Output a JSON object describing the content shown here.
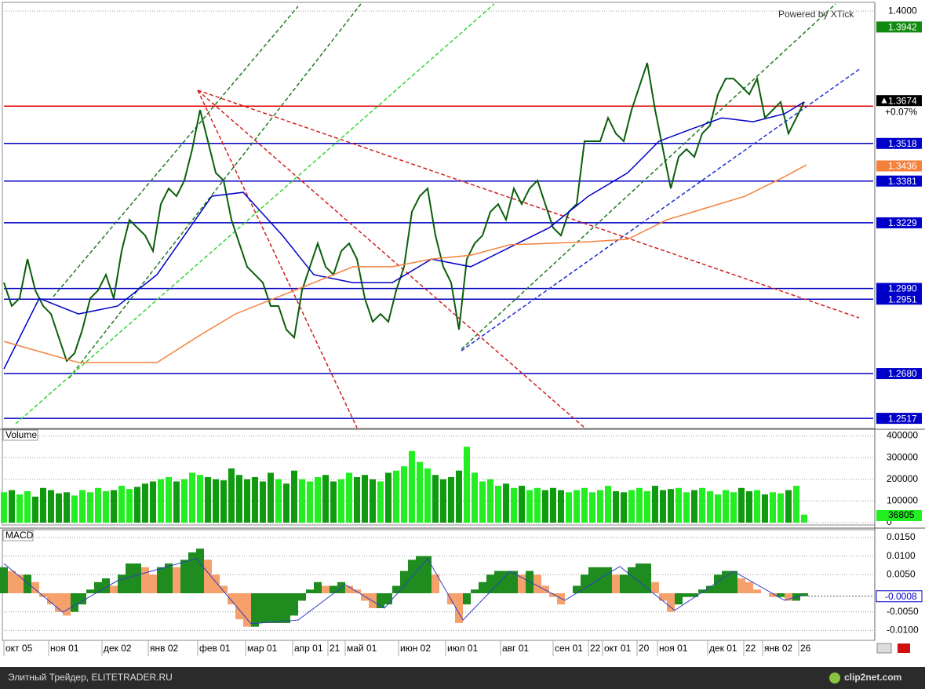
{
  "chart_data": [
    {
      "type": "line",
      "annotation": "Powered by XTick",
      "xlim": [
        0,
        111
      ],
      "ylim": [
        1.2483,
        1.4026
      ],
      "yticks": [
        {
          "value": 1.4,
          "label": "1.4000"
        }
      ],
      "x": [
        0,
        1,
        2,
        3,
        4,
        5,
        6,
        7,
        8,
        9,
        10,
        11,
        12,
        13,
        14,
        15,
        16,
        17,
        18,
        19,
        20,
        21,
        22,
        23,
        24,
        25,
        26,
        27,
        28,
        29,
        30,
        31,
        32,
        33,
        34,
        35,
        36,
        37,
        38,
        39,
        40,
        41,
        42,
        43,
        44,
        45,
        46,
        47,
        48,
        49,
        50,
        51,
        52,
        53,
        54,
        55,
        56,
        57,
        58,
        59,
        60,
        61,
        62,
        63,
        64,
        65,
        66,
        67,
        68,
        69,
        70,
        71,
        72,
        73,
        74,
        75,
        76,
        77,
        78,
        79,
        80,
        81,
        82,
        83,
        84,
        85,
        86,
        87,
        88,
        89,
        90,
        91,
        92,
        93,
        94,
        95,
        96,
        97,
        98,
        99,
        100,
        101,
        102
      ],
      "series": [
        {
          "color": "#0b5e0b",
          "values": [
            1.3011,
            1.2926,
            1.2954,
            1.3097,
            1.2983,
            1.2926,
            1.2897,
            1.2811,
            1.2726,
            1.2754,
            1.284,
            1.2954,
            1.2983,
            1.304,
            1.2954,
            1.3126,
            1.324,
            1.3211,
            1.3183,
            1.3126,
            1.3297,
            1.3354,
            1.3326,
            1.3383,
            1.3497,
            1.364,
            1.3526,
            1.3411,
            1.3383,
            1.324,
            1.3154,
            1.3069,
            1.304,
            1.3011,
            1.2926,
            1.2926,
            1.284,
            1.2811,
            1.2983,
            1.3069,
            1.3154,
            1.3069,
            1.304,
            1.3126,
            1.3154,
            1.3097,
            1.2954,
            1.2869,
            1.2897,
            1.2869,
            1.2983,
            1.3069,
            1.3269,
            1.3326,
            1.3354,
            1.3183,
            1.3069,
            1.3011,
            1.284,
            1.3097,
            1.3154,
            1.3183,
            1.3269,
            1.3297,
            1.324,
            1.3354,
            1.3297,
            1.3354,
            1.3383,
            1.3297,
            1.3211,
            1.3183,
            1.3269,
            1.3297,
            1.3526,
            1.3526,
            1.3526,
            1.3611,
            1.3554,
            1.3526,
            1.364,
            1.3726,
            1.3811,
            1.364,
            1.3497,
            1.3354,
            1.3469,
            1.3497,
            1.3469,
            1.3554,
            1.3583,
            1.3697,
            1.3754,
            1.3754,
            1.3726,
            1.3697,
            1.3754,
            1.3611,
            1.364,
            1.3669,
            1.3554,
            1.3611,
            1.3669
          ]
        },
        {
          "color": "#0000c8",
          "x": [
            0,
            4.5,
            9.5,
            14.5,
            19.5,
            26.5,
            30.5,
            35.5,
            39.5,
            44.5,
            49.5,
            54.5,
            59.5,
            64.5,
            69.5,
            74.5,
            79.5,
            83.5,
            87.5,
            91.5,
            95.5,
            99.5,
            102
          ],
          "values": [
            1.2697,
            1.2954,
            1.2897,
            1.2926,
            1.304,
            1.3326,
            1.334,
            1.3183,
            1.304,
            1.3011,
            1.3011,
            1.3097,
            1.3069,
            1.314,
            1.3211,
            1.3326,
            1.3411,
            1.3526,
            1.3569,
            1.3611,
            1.3597,
            1.3626,
            1.3669
          ]
        },
        {
          "color": "#f4803c",
          "x": [
            0,
            9.5,
            19.5,
            24.5,
            29.5,
            34.5,
            39.5,
            44.5,
            49.5,
            54.5,
            59.5,
            64.5,
            69.5,
            74.5,
            79.5,
            84.5,
            89.5,
            94.5,
            99.5,
            102.3
          ],
          "values": [
            1.2797,
            1.272,
            1.272,
            1.2811,
            1.2897,
            1.2954,
            1.3011,
            1.3069,
            1.3069,
            1.3097,
            1.3111,
            1.3149,
            1.3154,
            1.316,
            1.3169,
            1.324,
            1.3283,
            1.3326,
            1.3397,
            1.344
          ]
        }
      ],
      "levels": [
        {
          "value": 1.3654,
          "color": "#e00000"
        },
        {
          "value": 1.3518,
          "color": "#0000c0"
        },
        {
          "value": 1.3381,
          "color": "#0000c0"
        },
        {
          "value": 1.3229,
          "color": "#0000c0"
        },
        {
          "value": 1.299,
          "color": "#0000c0"
        },
        {
          "value": 1.2951,
          "color": "#0000c0"
        },
        {
          "value": 1.268,
          "color": "#0000c0"
        },
        {
          "value": 1.2517,
          "color": "#0000c0"
        }
      ],
      "price_labels": [
        {
          "value": 1.3942,
          "label": "1.3942",
          "color": "#108a10"
        },
        {
          "value": 1.3674,
          "label": "1.3674",
          "color": "#000000"
        },
        {
          "value": 1.3518,
          "label": "1.3518",
          "color": "#0000c8"
        },
        {
          "value": 1.3436,
          "label": "1.3436",
          "color": "#f4803c"
        },
        {
          "value": 1.3381,
          "label": "1.3381",
          "color": "#0000c8"
        },
        {
          "value": 1.3229,
          "label": "1.3229",
          "color": "#0000c8"
        },
        {
          "value": 1.299,
          "label": "1.2990",
          "color": "#0000c8"
        },
        {
          "value": 1.2951,
          "label": "1.2951",
          "color": "#0000c8"
        },
        {
          "value": 1.268,
          "label": "1.2680",
          "color": "#0000c8"
        },
        {
          "value": 1.2517,
          "label": "1.2517",
          "color": "#0000c8"
        }
      ],
      "change_label": "+0.07%"
    },
    {
      "type": "bar",
      "title": "Volume",
      "xlim": [
        0,
        111
      ],
      "ylim": [
        0,
        427000
      ],
      "yticks": [
        0,
        100000,
        200000,
        300000,
        400000
      ],
      "color_up": "#22ee22",
      "color_down": "#109a10",
      "values": [
        140000,
        150000,
        130000,
        145000,
        120000,
        160000,
        150000,
        135000,
        140000,
        125000,
        150000,
        140000,
        160000,
        145000,
        150000,
        170000,
        155000,
        165000,
        180000,
        190000,
        200000,
        210000,
        190000,
        200000,
        230000,
        220000,
        210000,
        200000,
        195000,
        250000,
        220000,
        200000,
        210000,
        190000,
        230000,
        200000,
        180000,
        240000,
        200000,
        190000,
        210000,
        220000,
        190000,
        200000,
        230000,
        210000,
        220000,
        200000,
        190000,
        230000,
        240000,
        260000,
        330000,
        280000,
        250000,
        220000,
        200000,
        210000,
        240000,
        350000,
        230000,
        190000,
        200000,
        170000,
        180000,
        160000,
        170000,
        150000,
        160000,
        150000,
        160000,
        150000,
        140000,
        150000,
        160000,
        140000,
        150000,
        170000,
        145000,
        140000,
        150000,
        160000,
        145000,
        170000,
        150000,
        155000,
        160000,
        140000,
        150000,
        160000,
        145000,
        130000,
        150000,
        140000,
        160000,
        145000,
        150000,
        130000,
        140000,
        135000,
        150000,
        170000,
        36805
      ]
    },
    {
      "type": "bar",
      "title": "MACD",
      "xlim": [
        0,
        111
      ],
      "ylim": [
        -0.01245,
        0.01667
      ],
      "yticks": [
        {
          "value": 0.015,
          "label": "0.0150"
        },
        {
          "value": 0.01,
          "label": "0.0100"
        },
        {
          "value": 0.005,
          "label": "0.0050"
        },
        {
          "value": -0.005,
          "label": "-0.0050"
        },
        {
          "value": -0.01,
          "label": "-0.0100"
        }
      ],
      "xticks": [
        {
          "value": 0,
          "label": "окт 05"
        },
        {
          "value": 5.7,
          "label": "ноя 01"
        },
        {
          "value": 12.5,
          "label": "дек 02"
        },
        {
          "value": 18.4,
          "label": "янв 02"
        },
        {
          "value": 24.7,
          "label": "фев 01"
        },
        {
          "value": 30.8,
          "label": "мар 01"
        },
        {
          "value": 36.8,
          "label": "апр 01"
        },
        {
          "value": 41.3,
          "label": "21"
        },
        {
          "value": 43.5,
          "label": "май 01"
        },
        {
          "value": 50.3,
          "label": "июн 02"
        },
        {
          "value": 56.3,
          "label": "июл 01"
        },
        {
          "value": 63.3,
          "label": "авг 01"
        },
        {
          "value": 70,
          "label": "сен 01"
        },
        {
          "value": 74.5,
          "label": "22"
        },
        {
          "value": 76.3,
          "label": "окт 01"
        },
        {
          "value": 80.7,
          "label": "20"
        },
        {
          "value": 83.3,
          "label": "ноя 01"
        },
        {
          "value": 89.7,
          "label": "дек 01"
        },
        {
          "value": 94.3,
          "label": "22"
        },
        {
          "value": 96.7,
          "label": "янв 02"
        },
        {
          "value": 101.3,
          "label": "26"
        }
      ],
      "color_up": "#1e8c1e",
      "color_down": "#f6a06c",
      "values": [
        0.007,
        0.006,
        0.005,
        0.005,
        0.003,
        -0.001,
        -0.003,
        -0.005,
        -0.006,
        -0.005,
        -0.003,
        0.001,
        0.003,
        0.004,
        0.002,
        0.005,
        0.008,
        0.008,
        0.007,
        0.005,
        0.007,
        0.008,
        0.007,
        0.009,
        0.011,
        0.012,
        0.009,
        0.005,
        0.002,
        -0.003,
        -0.007,
        -0.009,
        -0.009,
        -0.008,
        -0.008,
        -0.008,
        -0.008,
        -0.006,
        -0.002,
        0.001,
        0.003,
        0.002,
        0.002,
        0.003,
        0.002,
        0.001,
        -0.002,
        -0.004,
        -0.004,
        -0.003,
        0.002,
        0.006,
        0.009,
        0.01,
        0.01,
        0.005,
        0,
        -0.003,
        -0.008,
        -0.003,
        0.001,
        0.003,
        0.005,
        0.006,
        0.006,
        0.006,
        0.005,
        0.006,
        0.005,
        0.002,
        -0.001,
        -0.003,
        0,
        0.002,
        0.005,
        0.007,
        0.007,
        0.007,
        0.005,
        0.005,
        0.007,
        0.008,
        0.008,
        0.003,
        -0.002,
        -0.005,
        -0.003,
        -0.001,
        -0.001,
        0.001,
        0.002,
        0.005,
        0.006,
        0.006,
        0.004,
        0.003,
        0.001,
        0,
        -0.001,
        -0.001,
        -0.002,
        -0.002,
        -0.0008
      ],
      "signal": {
        "color": "#3040c0",
        "x": [
          0,
          7.5,
          14.5,
          24.5,
          31.5,
          37.5,
          43.5,
          48.5,
          54,
          58.5,
          64.5,
          71.5,
          78.5,
          85.5,
          93,
          99.5,
          102
        ],
        "values": [
          0.008,
          -0.0051,
          0.0034,
          0.0093,
          -0.0082,
          -0.0072,
          0.0023,
          -0.004,
          0.0093,
          -0.0072,
          0.0059,
          -0.0019,
          0.0072,
          -0.0046,
          0.0059,
          -0.0019,
          -0.0004
        ]
      }
    }
  ],
  "footer": {
    "left": "Элитный Трейдер, ELITETRADER.RU",
    "right": "clip2net.com"
  }
}
